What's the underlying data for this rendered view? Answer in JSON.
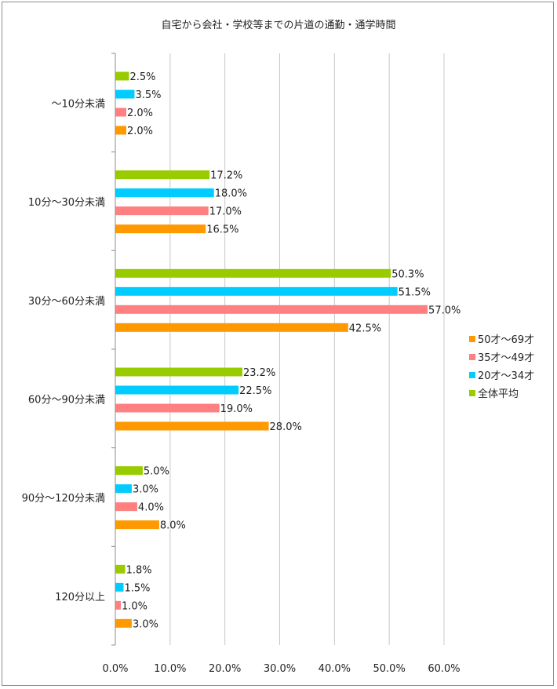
{
  "chart_data": {
    "type": "bar",
    "orientation": "horizontal",
    "title": "自宅から会社・学校等までの片道の通勤・通学時間",
    "categories": [
      "～10分未満",
      "10分～30分未満",
      "30分～60分未満",
      "60分～90分未満",
      "90分～120分未満",
      "120分以上"
    ],
    "series": [
      {
        "name": "全体平均",
        "color": "#99cc00",
        "values": [
          2.5,
          17.2,
          50.3,
          23.2,
          5.0,
          1.8
        ]
      },
      {
        "name": "20才～34才",
        "color": "#00ccff",
        "values": [
          3.5,
          18.0,
          51.5,
          22.5,
          3.0,
          1.5
        ]
      },
      {
        "name": "35才～49才",
        "color": "#ff8080",
        "values": [
          2.0,
          17.0,
          57.0,
          19.0,
          4.0,
          1.0
        ]
      },
      {
        "name": "50才～69才",
        "color": "#ff9900",
        "values": [
          2.0,
          16.5,
          42.5,
          28.0,
          8.0,
          3.0
        ]
      }
    ],
    "legend_order": [
      "50才～69才",
      "35才～49才",
      "20才～34才",
      "全体平均"
    ],
    "xlim": [
      0,
      60
    ],
    "xticks": [
      "0.0%",
      "10.0%",
      "20.0%",
      "30.0%",
      "40.0%",
      "50.0%",
      "60.0%"
    ],
    "value_suffix": "%",
    "grid": "vertical",
    "legend_position": "right"
  }
}
